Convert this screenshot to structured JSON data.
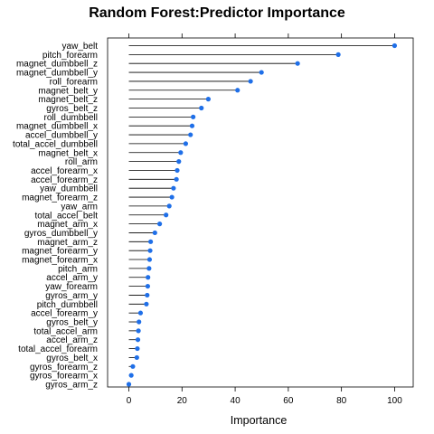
{
  "chart_data": {
    "type": "dotplot",
    "title": "Random Forest:Predictor Importance",
    "xlabel": "Importance",
    "ylabel": "",
    "xlim": [
      -8,
      107
    ],
    "xticks": [
      0,
      20,
      40,
      60,
      80,
      100
    ],
    "grid": false,
    "point_color": "#1f6fe8",
    "line_color": "#000000",
    "categories": [
      "yaw_belt",
      "pitch_forearm",
      "magnet_dumbbell_z",
      "magnet_dumbbell_y",
      "roll_forearm",
      "magnet_belt_y",
      "magnet_belt_z",
      "gyros_belt_z",
      "roll_dumbbell",
      "magnet_dumbbell_x",
      "accel_dumbbell_y",
      "total_accel_dumbbell",
      "magnet_belt_x",
      "roll_arm",
      "accel_forearm_x",
      "accel_forearm_z",
      "yaw_dumbbell",
      "magnet_forearm_z",
      "yaw_arm",
      "total_accel_belt",
      "magnet_arm_x",
      "gyros_dumbbell_y",
      "magnet_arm_z",
      "magnet_forearm_y",
      "magnet_forearm_x",
      "pitch_arm",
      "accel_arm_y",
      "yaw_forearm",
      "gyros_arm_y",
      "pitch_dumbbell",
      "accel_forearm_y",
      "gyros_belt_y",
      "total_accel_arm",
      "accel_arm_z",
      "total_accel_forearm",
      "gyros_belt_x",
      "gyros_forearm_z",
      "gyros_forearm_x",
      "gyros_arm_z"
    ],
    "values": [
      100,
      78.8,
      63.5,
      49.9,
      45.8,
      40.9,
      29.9,
      27.3,
      24.2,
      23.8,
      23.2,
      21.4,
      19.5,
      18.8,
      18.2,
      17.9,
      16.8,
      16.2,
      15.2,
      14.0,
      11.6,
      9.8,
      8.2,
      8.0,
      7.8,
      7.6,
      7.2,
      7.1,
      6.9,
      6.6,
      4.4,
      3.8,
      3.6,
      3.4,
      3.2,
      3.0,
      1.5,
      0.9,
      0
    ]
  }
}
